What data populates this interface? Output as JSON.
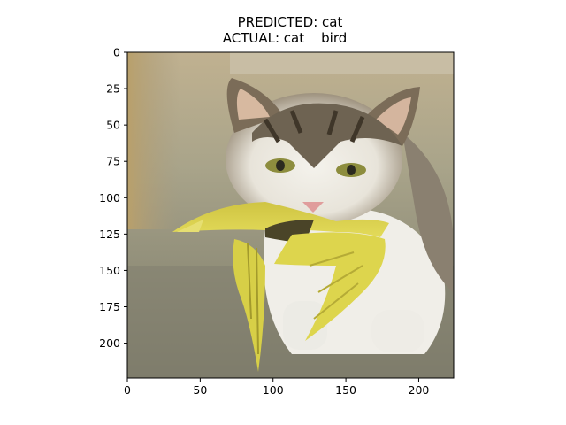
{
  "figure": {
    "title_line1": "PREDICTED: cat",
    "title_line2": "ACTUAL: cat    bird"
  },
  "image_axes": {
    "x_ticks": [
      "0",
      "50",
      "100",
      "150",
      "200"
    ],
    "y_ticks": [
      "0",
      "25",
      "50",
      "75",
      "100",
      "125",
      "150",
      "175",
      "200"
    ],
    "x_range": [
      0,
      224
    ],
    "y_range": [
      0,
      224
    ]
  },
  "image_content": {
    "subject": "kitten holding a yellow bird in its mouth",
    "colors": {
      "background_top": "#b8ab8a",
      "background_floor": "#8f8d78",
      "fur_white": "#f2f0ea",
      "fur_tabby": "#6d6250",
      "bird_yellow": "#d9d24a",
      "eye": "#8a8a3a",
      "nose": "#e2a0a0"
    }
  }
}
